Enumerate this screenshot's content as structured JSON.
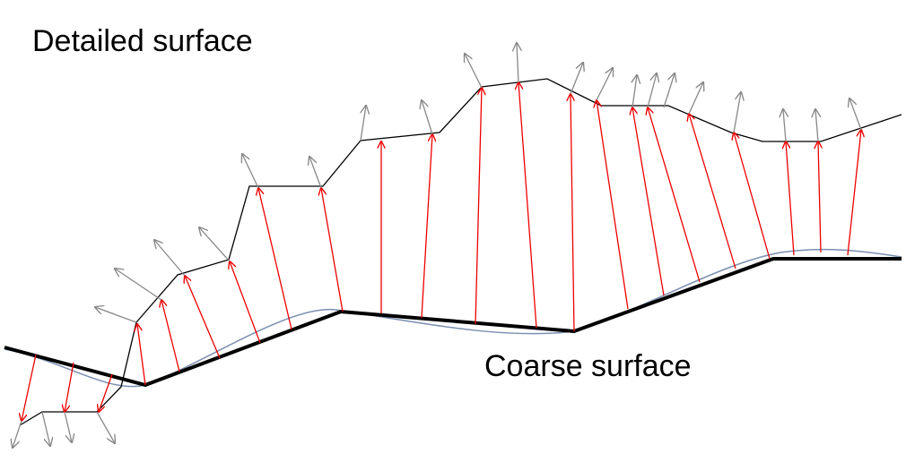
{
  "labels": {
    "detailed": "Detailed surface",
    "coarse": "Coarse surface"
  }
}
